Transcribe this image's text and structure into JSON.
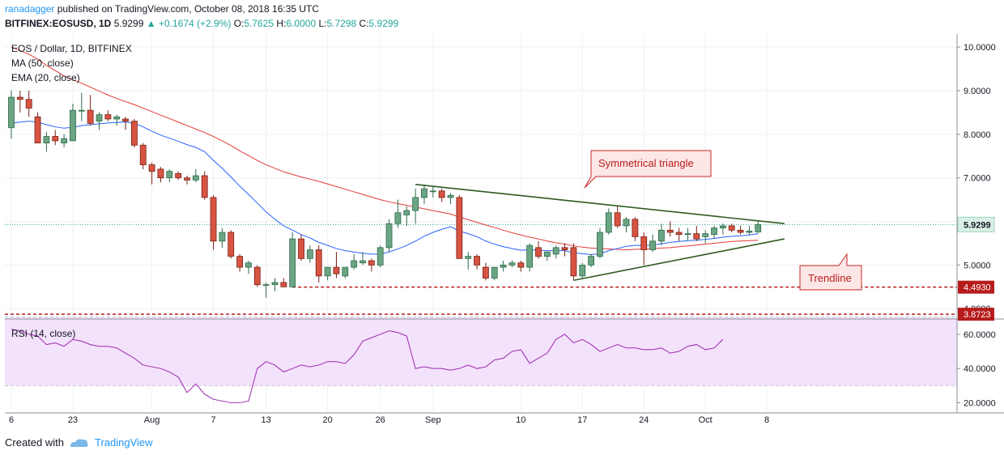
{
  "header": {
    "user": "ranadagger",
    "published": "published on TradingView.com, October 08, 2018 16:35 UTC",
    "symbol": "BITFINEX:EOSUSD, 1D",
    "last": "5.9299",
    "change": "▲ +0.1674 (+2.9%)",
    "o_label": "O:",
    "o": "5.7625",
    "h_label": "H:",
    "h": "6.0000",
    "l_label": "L:",
    "l": "5.7298",
    "c_label": "C:",
    "c": "5.9299"
  },
  "legend": {
    "title": "EOS / Dollar, 1D, BITFINEX",
    "ma": "MA (50, close)",
    "ema": "EMA (20, close)"
  },
  "rsi": {
    "label": "RSI (14, close)",
    "ticks": [
      "60.0000",
      "40.0000",
      "20.0000"
    ],
    "upper": 70,
    "lower": 30,
    "values": [
      63,
      62,
      60,
      59,
      54,
      55,
      53,
      57,
      56,
      54,
      53,
      53,
      52,
      49,
      46,
      42,
      41,
      40,
      38,
      35,
      26,
      31,
      25,
      22,
      21,
      20,
      20,
      21,
      40,
      44,
      42,
      38,
      40,
      42,
      41,
      42,
      44,
      44,
      43,
      48,
      56,
      58,
      60,
      62,
      61,
      59,
      40,
      41,
      40,
      40,
      39,
      40,
      42,
      40,
      41,
      45,
      46,
      50,
      51,
      43,
      46,
      49,
      57,
      60,
      55,
      57,
      54,
      50,
      52,
      54,
      52,
      52,
      51,
      51,
      52,
      49,
      50,
      53,
      54,
      51,
      52,
      57
    ],
    "color": "#9c27b0"
  },
  "footer": {
    "created": "Created with",
    "brand": "TradingView"
  },
  "chart_data": {
    "type": "candlestick",
    "title": "EOS / Dollar, 1D, BITFINEX",
    "ylim": [
      3.8,
      10.3
    ],
    "y_ticks": [
      "10.0000",
      "9.0000",
      "8.0000",
      "7.0000",
      "6.0000",
      "5.0000",
      "4.0000"
    ],
    "x_ticks": [
      {
        "label": "6",
        "index": 0
      },
      {
        "label": "23",
        "index": 7
      },
      {
        "label": "Aug",
        "index": 16
      },
      {
        "label": "7",
        "index": 23
      },
      {
        "label": "13",
        "index": 29
      },
      {
        "label": "20",
        "index": 36
      },
      {
        "label": "26",
        "index": 42
      },
      {
        "label": "Sep",
        "index": 48
      },
      {
        "label": "10",
        "index": 58
      },
      {
        "label": "17",
        "index": 65
      },
      {
        "label": "24",
        "index": 72
      },
      {
        "label": "Oct",
        "index": 79
      },
      {
        "label": "8",
        "index": 86
      }
    ],
    "ohlc": [
      [
        8.15,
        9.0,
        7.9,
        8.85
      ],
      [
        8.85,
        9.0,
        8.5,
        8.8
      ],
      [
        8.8,
        9.0,
        8.4,
        8.6
      ],
      [
        8.4,
        8.5,
        7.8,
        7.8
      ],
      [
        7.8,
        8.05,
        7.6,
        7.95
      ],
      [
        7.95,
        8.1,
        7.75,
        7.85
      ],
      [
        7.8,
        8.0,
        7.7,
        7.9
      ],
      [
        7.85,
        8.7,
        7.85,
        8.55
      ],
      [
        8.55,
        8.95,
        8.3,
        8.55
      ],
      [
        8.55,
        8.9,
        8.2,
        8.25
      ],
      [
        8.3,
        8.5,
        8.1,
        8.45
      ],
      [
        8.45,
        8.55,
        8.3,
        8.35
      ],
      [
        8.35,
        8.45,
        8.2,
        8.4
      ],
      [
        8.35,
        8.4,
        8.1,
        8.3
      ],
      [
        8.3,
        8.35,
        7.7,
        7.75
      ],
      [
        7.75,
        7.8,
        7.2,
        7.3
      ],
      [
        7.3,
        7.35,
        6.85,
        7.15
      ],
      [
        7.2,
        7.25,
        6.9,
        7.0
      ],
      [
        7.0,
        7.2,
        6.9,
        7.15
      ],
      [
        7.1,
        7.15,
        6.95,
        7.0
      ],
      [
        7.0,
        7.05,
        6.85,
        6.95
      ],
      [
        6.95,
        7.2,
        6.9,
        7.05
      ],
      [
        7.05,
        7.15,
        6.5,
        6.55
      ],
      [
        6.55,
        6.6,
        5.35,
        5.55
      ],
      [
        5.55,
        5.85,
        5.4,
        5.75
      ],
      [
        5.75,
        5.8,
        5.15,
        5.2
      ],
      [
        5.2,
        5.25,
        4.85,
        4.95
      ],
      [
        4.95,
        5.1,
        4.8,
        5.05
      ],
      [
        4.95,
        5.0,
        4.5,
        4.55
      ],
      [
        4.55,
        4.6,
        4.25,
        4.55
      ],
      [
        4.55,
        4.7,
        4.4,
        4.6
      ],
      [
        4.6,
        4.7,
        4.5,
        4.5
      ],
      [
        4.5,
        5.75,
        4.49,
        5.6
      ],
      [
        5.6,
        5.7,
        5.1,
        5.15
      ],
      [
        5.15,
        5.45,
        5.05,
        5.35
      ],
      [
        5.35,
        5.45,
        4.6,
        4.75
      ],
      [
        4.75,
        4.95,
        4.65,
        4.95
      ],
      [
        4.95,
        5.3,
        4.7,
        4.8
      ],
      [
        4.75,
        4.95,
        4.7,
        4.95
      ],
      [
        4.95,
        5.25,
        4.9,
        5.1
      ],
      [
        5.05,
        5.3,
        5.0,
        5.1
      ],
      [
        5.1,
        5.15,
        4.85,
        5.0
      ],
      [
        5.0,
        5.45,
        4.95,
        5.4
      ],
      [
        5.4,
        6.05,
        5.3,
        5.95
      ],
      [
        5.95,
        6.5,
        5.85,
        6.2
      ],
      [
        6.15,
        6.35,
        5.9,
        6.25
      ],
      [
        6.25,
        6.75,
        5.95,
        6.55
      ],
      [
        6.55,
        6.85,
        6.4,
        6.75
      ],
      [
        6.7,
        6.8,
        6.55,
        6.7
      ],
      [
        6.7,
        6.75,
        6.45,
        6.55
      ],
      [
        6.55,
        6.65,
        6.4,
        6.6
      ],
      [
        6.55,
        6.6,
        5.15,
        5.15
      ],
      [
        5.15,
        5.3,
        4.9,
        5.2
      ],
      [
        5.2,
        5.25,
        4.9,
        5.0
      ],
      [
        4.95,
        5.05,
        4.65,
        4.7
      ],
      [
        4.7,
        4.95,
        4.65,
        4.95
      ],
      [
        4.95,
        5.1,
        4.85,
        5.0
      ],
      [
        5.0,
        5.1,
        4.95,
        5.05
      ],
      [
        5.05,
        5.1,
        4.85,
        4.95
      ],
      [
        4.95,
        5.5,
        4.85,
        5.45
      ],
      [
        5.4,
        5.55,
        5.15,
        5.2
      ],
      [
        5.2,
        5.3,
        5.1,
        5.3
      ],
      [
        5.25,
        5.45,
        5.15,
        5.4
      ],
      [
        5.4,
        5.5,
        5.2,
        5.35
      ],
      [
        5.4,
        5.5,
        4.65,
        4.75
      ],
      [
        4.75,
        5.05,
        4.7,
        5.0
      ],
      [
        5.0,
        5.25,
        4.95,
        5.2
      ],
      [
        5.2,
        5.85,
        5.15,
        5.75
      ],
      [
        5.75,
        6.3,
        5.7,
        6.2
      ],
      [
        6.2,
        6.35,
        5.85,
        5.9
      ],
      [
        5.9,
        6.1,
        5.75,
        6.05
      ],
      [
        6.05,
        6.1,
        5.55,
        5.65
      ],
      [
        5.65,
        5.75,
        5.0,
        5.35
      ],
      [
        5.35,
        5.7,
        5.3,
        5.55
      ],
      [
        5.55,
        5.95,
        5.45,
        5.8
      ],
      [
        5.8,
        6.0,
        5.65,
        5.75
      ],
      [
        5.75,
        5.85,
        5.55,
        5.7
      ],
      [
        5.7,
        5.85,
        5.55,
        5.72
      ],
      [
        5.72,
        5.9,
        5.55,
        5.6
      ],
      [
        5.65,
        5.8,
        5.5,
        5.72
      ],
      [
        5.7,
        5.9,
        5.6,
        5.85
      ],
      [
        5.85,
        5.95,
        5.7,
        5.9
      ],
      [
        5.9,
        5.95,
        5.75,
        5.8
      ],
      [
        5.8,
        5.9,
        5.7,
        5.75
      ],
      [
        5.75,
        5.9,
        5.7,
        5.78
      ],
      [
        5.76,
        6.0,
        5.73,
        5.93
      ]
    ],
    "ema20": [
      8.25,
      8.28,
      8.3,
      8.28,
      8.22,
      8.17,
      8.14,
      8.16,
      8.2,
      8.22,
      8.24,
      8.26,
      8.27,
      8.28,
      8.25,
      8.17,
      8.07,
      7.98,
      7.91,
      7.84,
      7.76,
      7.7,
      7.6,
      7.4,
      7.22,
      7.02,
      6.81,
      6.62,
      6.42,
      6.22,
      6.05,
      5.9,
      5.8,
      5.7,
      5.62,
      5.52,
      5.45,
      5.38,
      5.33,
      5.3,
      5.27,
      5.25,
      5.25,
      5.3,
      5.37,
      5.45,
      5.55,
      5.66,
      5.75,
      5.82,
      5.88,
      5.78,
      5.72,
      5.65,
      5.55,
      5.48,
      5.42,
      5.38,
      5.34,
      5.35,
      5.34,
      5.33,
      5.33,
      5.33,
      5.28,
      5.26,
      5.24,
      5.26,
      5.33,
      5.38,
      5.43,
      5.45,
      5.45,
      5.46,
      5.49,
      5.52,
      5.54,
      5.56,
      5.57,
      5.59,
      5.61,
      5.64,
      5.66,
      5.67,
      5.69,
      5.72
    ],
    "ma50": [
      10.0,
      9.92,
      9.84,
      9.72,
      9.58,
      9.46,
      9.34,
      9.25,
      9.17,
      9.08,
      8.99,
      8.9,
      8.82,
      8.75,
      8.68,
      8.6,
      8.52,
      8.44,
      8.36,
      8.28,
      8.2,
      8.12,
      8.04,
      7.95,
      7.85,
      7.74,
      7.62,
      7.51,
      7.4,
      7.3,
      7.22,
      7.14,
      7.08,
      7.02,
      6.97,
      6.92,
      6.86,
      6.8,
      6.74,
      6.68,
      6.62,
      6.56,
      6.5,
      6.45,
      6.41,
      6.37,
      6.33,
      6.29,
      6.25,
      6.21,
      6.17,
      6.1,
      6.04,
      5.98,
      5.92,
      5.86,
      5.8,
      5.74,
      5.69,
      5.64,
      5.6,
      5.55,
      5.51,
      5.48,
      5.44,
      5.41,
      5.39,
      5.38,
      5.37,
      5.36,
      5.35,
      5.36,
      5.37,
      5.38,
      5.39,
      5.4,
      5.42,
      5.44,
      5.46,
      5.48,
      5.5,
      5.52,
      5.54,
      5.55,
      5.56,
      5.57
    ],
    "trendlines": [
      {
        "from": [
          46,
          6.85
        ],
        "to": [
          88,
          5.95
        ],
        "color": "#2e5a21"
      },
      {
        "from": [
          64,
          4.65
        ],
        "to": [
          88,
          5.6
        ],
        "color": "#2e5a21"
      }
    ],
    "levels": [
      {
        "value": 4.493,
        "label": "4.4930",
        "color": "#b71c1c"
      },
      {
        "value": 3.8723,
        "label": "3.8723",
        "color": "#b71c1c"
      }
    ],
    "price_line": {
      "value": 5.9299,
      "label": "5.9299"
    },
    "annotations": [
      {
        "text": "Symmetrical triangle"
      },
      {
        "text": "Trendline"
      }
    ],
    "colors": {
      "up": "#26a69a",
      "up_fill": "#6ba583",
      "down": "#d75442",
      "ema": "#2962ff",
      "ma": "#e53935"
    }
  }
}
